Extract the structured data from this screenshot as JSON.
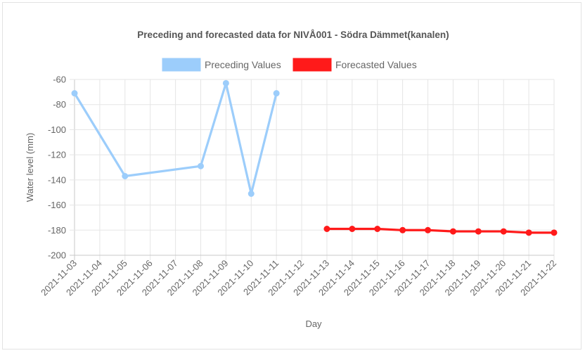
{
  "chart_data": {
    "type": "line",
    "title": "Preceding and forecasted data for NIVÅ001 - Södra Dämmet(kanalen)",
    "xlabel": "Day",
    "ylabel": "Water level (mm)",
    "ylim": [
      -200,
      -60
    ],
    "yticks": [
      -60,
      -80,
      -100,
      -120,
      -140,
      -160,
      -180,
      -200
    ],
    "categories": [
      "2021-11-03",
      "2021-11-04",
      "2021-11-05",
      "2021-11-06",
      "2021-11-07",
      "2021-11-08",
      "2021-11-09",
      "2021-11-10",
      "2021-11-11",
      "2021-11-12",
      "2021-11-13",
      "2021-11-14",
      "2021-11-15",
      "2021-11-16",
      "2021-11-17",
      "2021-11-18",
      "2021-11-19",
      "2021-11-20",
      "2021-11-21",
      "2021-11-22"
    ],
    "legend_position": "top",
    "grid": true,
    "series": [
      {
        "name": "Preceding Values",
        "color": "#9ccdfb",
        "points": [
          {
            "x": "2021-11-03",
            "y": -71
          },
          {
            "x": "2021-11-05",
            "y": -137
          },
          {
            "x": "2021-11-08",
            "y": -129
          },
          {
            "x": "2021-11-09",
            "y": -63
          },
          {
            "x": "2021-11-10",
            "y": -151
          },
          {
            "x": "2021-11-11",
            "y": -71
          }
        ]
      },
      {
        "name": "Forecasted Values",
        "color": "#ff1a1a",
        "points": [
          {
            "x": "2021-11-13",
            "y": -179
          },
          {
            "x": "2021-11-14",
            "y": -179
          },
          {
            "x": "2021-11-15",
            "y": -179
          },
          {
            "x": "2021-11-16",
            "y": -180
          },
          {
            "x": "2021-11-17",
            "y": -180
          },
          {
            "x": "2021-11-18",
            "y": -181
          },
          {
            "x": "2021-11-19",
            "y": -181
          },
          {
            "x": "2021-11-20",
            "y": -181
          },
          {
            "x": "2021-11-21",
            "y": -182
          },
          {
            "x": "2021-11-22",
            "y": -182
          }
        ]
      }
    ]
  }
}
